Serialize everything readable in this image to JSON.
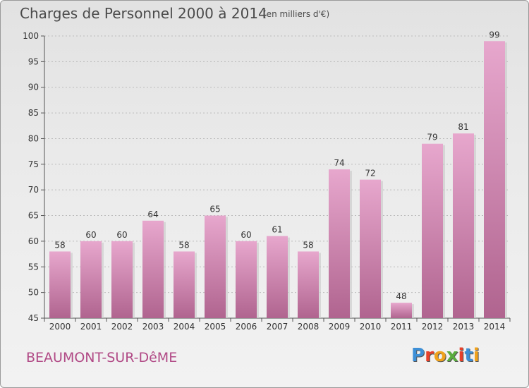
{
  "header": {
    "title": "Charges de Personnel 2000 à 2014",
    "subtitle": "(en milliers d'€)"
  },
  "footer": {
    "commune": "BEAUMONT-SUR-DêME",
    "logo": "Proxiti",
    "logo_colors": [
      "#3d8fd6",
      "#e8402a",
      "#f0a21c",
      "#5aac3e",
      "#e8402a",
      "#3d8fd6",
      "#f0a21c"
    ]
  },
  "colors": {
    "bar_top": "#e7a7cd",
    "bar_bottom": "#b0648f",
    "axis_text": "#333333",
    "grid": "#bbbbbb",
    "commune_text": "#b14a86"
  },
  "chart_data": {
    "type": "bar",
    "categories": [
      "2000",
      "2001",
      "2002",
      "2003",
      "2004",
      "2005",
      "2006",
      "2007",
      "2008",
      "2009",
      "2010",
      "2011",
      "2012",
      "2013",
      "2014"
    ],
    "values": [
      58,
      60,
      60,
      64,
      58,
      65,
      60,
      61,
      58,
      74,
      72,
      48,
      79,
      81,
      99
    ],
    "ylim": [
      45,
      100
    ],
    "yticks": [
      45,
      50,
      55,
      60,
      65,
      70,
      75,
      80,
      85,
      90,
      95,
      100
    ],
    "grid": true,
    "data_labels": true
  }
}
